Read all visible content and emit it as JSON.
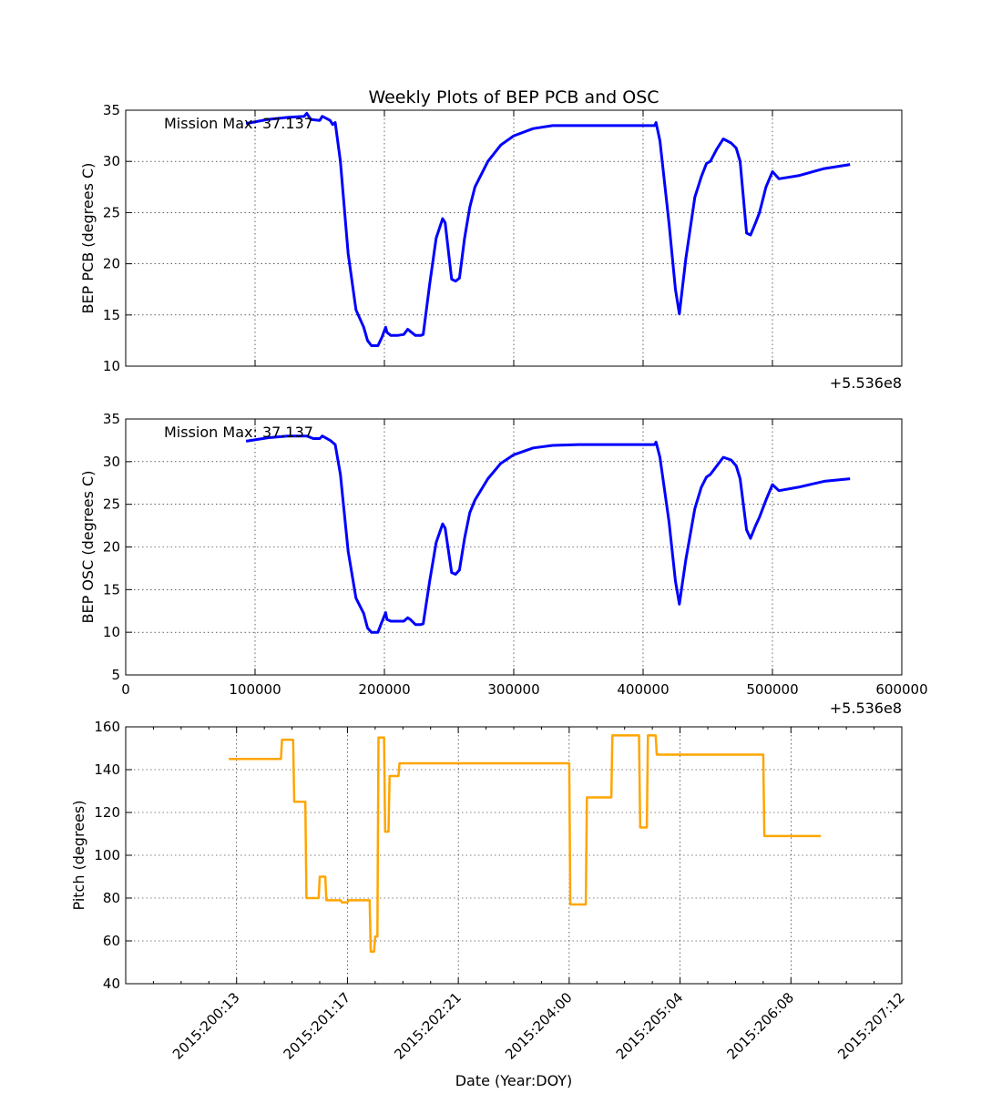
{
  "title": "Weekly Plots of BEP PCB and OSC",
  "colors": {
    "temp_line": "#0000ff",
    "pitch_line": "#ffa500",
    "grid": "#000000"
  },
  "chart_data": [
    {
      "type": "line",
      "ylabel": "BEP PCB (degrees C)",
      "xlabel": "",
      "xlim": [
        0,
        600000
      ],
      "ylim": [
        10,
        35
      ],
      "yticks": [
        10,
        15,
        20,
        25,
        30,
        35
      ],
      "xticks": [
        100000,
        200000,
        300000,
        400000,
        500000
      ],
      "show_xtick_labels": false,
      "offset_label": "+5.536e8",
      "annotation": "Mission Max: 37.137",
      "grid": true,
      "series": [
        {
          "x": [
            93000,
            110000,
            125000,
            138000,
            140000,
            143000,
            150000,
            152000,
            158000,
            160000,
            162000,
            166000,
            172000,
            178000,
            184000,
            187000,
            190000,
            195000,
            198000,
            201000,
            202000,
            205000,
            210000,
            215000,
            218000,
            220000,
            224000,
            228000,
            230000,
            235000,
            240000,
            245000,
            247000,
            252000,
            255000,
            258000,
            262000,
            266000,
            270000,
            280000,
            290000,
            300000,
            315000,
            330000,
            350000,
            380000,
            409000,
            410000,
            413000,
            420000,
            425000,
            428000,
            433000,
            440000,
            445000,
            449000,
            452000,
            457000,
            462000,
            468000,
            472000,
            475000,
            480000,
            483000,
            487000,
            490000,
            495000,
            500000,
            505000,
            520000,
            540000,
            560000
          ],
          "y": [
            33.7,
            34.1,
            34.3,
            34.4,
            34.7,
            34.1,
            34.0,
            34.4,
            34.0,
            33.6,
            33.8,
            30.0,
            21.0,
            15.5,
            13.8,
            12.5,
            12.0,
            12.0,
            12.8,
            13.8,
            13.3,
            13.0,
            13.0,
            13.1,
            13.6,
            13.4,
            13.0,
            13.0,
            13.1,
            18.0,
            22.5,
            24.4,
            24.0,
            18.5,
            18.3,
            18.6,
            22.5,
            25.5,
            27.5,
            30.0,
            31.6,
            32.5,
            33.2,
            33.5,
            33.5,
            33.5,
            33.5,
            33.8,
            32.0,
            24.0,
            17.5,
            15.1,
            20.5,
            26.5,
            28.5,
            29.8,
            30.0,
            31.2,
            32.2,
            31.8,
            31.3,
            30.0,
            23.0,
            22.8,
            24.0,
            25.0,
            27.5,
            29.0,
            28.3,
            28.6,
            29.3,
            29.7
          ]
        }
      ]
    },
    {
      "type": "line",
      "ylabel": "BEP OSC (degrees C)",
      "xlabel": "",
      "xlim": [
        0,
        600000
      ],
      "ylim": [
        5,
        35
      ],
      "yticks": [
        5,
        10,
        15,
        20,
        25,
        30,
        35
      ],
      "xticks": [
        0,
        100000,
        200000,
        300000,
        400000,
        500000,
        600000
      ],
      "xtick_labels": [
        "0",
        "100000",
        "200000",
        "300000",
        "400000",
        "500000",
        "600000"
      ],
      "offset_label": "+5.536e8",
      "annotation": "Mission Max: 37.137",
      "grid": true,
      "series": [
        {
          "x": [
            93000,
            110000,
            125000,
            140000,
            145000,
            150000,
            152000,
            158000,
            162000,
            166000,
            172000,
            178000,
            184000,
            187000,
            190000,
            195000,
            198000,
            201000,
            202000,
            205000,
            210000,
            215000,
            218000,
            220000,
            224000,
            228000,
            230000,
            235000,
            240000,
            245000,
            247000,
            252000,
            255000,
            258000,
            262000,
            266000,
            270000,
            280000,
            290000,
            300000,
            315000,
            330000,
            350000,
            380000,
            409000,
            410000,
            413000,
            420000,
            425000,
            428000,
            433000,
            440000,
            445000,
            449000,
            452000,
            457000,
            462000,
            468000,
            472000,
            475000,
            480000,
            483000,
            487000,
            490000,
            495000,
            500000,
            505000,
            520000,
            540000,
            560000
          ],
          "y": [
            32.4,
            32.8,
            33.0,
            33.0,
            32.7,
            32.7,
            33.0,
            32.5,
            32.0,
            28.5,
            19.5,
            14.0,
            12.2,
            10.5,
            10.0,
            10.0,
            11.2,
            12.3,
            11.5,
            11.3,
            11.3,
            11.3,
            11.7,
            11.5,
            10.9,
            10.9,
            11.0,
            16.0,
            20.5,
            22.7,
            22.2,
            17.0,
            16.8,
            17.3,
            21.0,
            24.0,
            25.5,
            28.0,
            29.8,
            30.8,
            31.6,
            31.9,
            32.0,
            32.0,
            32.0,
            32.3,
            30.5,
            23.0,
            16.0,
            13.3,
            18.5,
            24.5,
            27.0,
            28.2,
            28.5,
            29.5,
            30.5,
            30.2,
            29.5,
            28.0,
            22.0,
            21.0,
            22.5,
            23.5,
            25.5,
            27.3,
            26.6,
            27.0,
            27.7,
            28.0
          ]
        }
      ]
    },
    {
      "type": "line",
      "ylabel": "Pitch (degrees)",
      "xlabel": "Date (Year:DOY)",
      "xlim": [
        0,
        7
      ],
      "ylim": [
        40,
        160
      ],
      "yticks": [
        40,
        60,
        80,
        100,
        120,
        140,
        160
      ],
      "xticks": [
        1,
        2,
        3,
        4,
        5,
        6,
        7
      ],
      "xtick_labels": [
        "2015:200:13",
        "2015:201:17",
        "2015:202:21",
        "2015:204:00",
        "2015:205:04",
        "2015:206:08",
        "2015:207:12"
      ],
      "grid": true,
      "series": [
        {
          "x": [
            0.93,
            1.4,
            1.41,
            1.51,
            1.52,
            1.62,
            1.63,
            1.74,
            1.75,
            1.8,
            1.81,
            1.94,
            1.95,
            2.0,
            2.01,
            2.2,
            2.21,
            2.24,
            2.25,
            2.27,
            2.28,
            2.33,
            2.34,
            2.37,
            2.38,
            2.46,
            2.47,
            2.55,
            2.56,
            2.65,
            2.66,
            2.76,
            2.77,
            4.0,
            4.01,
            4.15,
            4.16,
            4.38,
            4.39,
            4.63,
            4.64,
            4.7,
            4.71,
            4.78,
            4.79,
            5.75,
            5.76,
            6.27
          ],
          "y": [
            145,
            145,
            154,
            154,
            125,
            125,
            80,
            80,
            90,
            90,
            79,
            79,
            78,
            78,
            79,
            79,
            55,
            55,
            62,
            62,
            155,
            155,
            111,
            111,
            137,
            137,
            143,
            143,
            143,
            143,
            143,
            143,
            143,
            143,
            77,
            77,
            127,
            127,
            156,
            156,
            113,
            113,
            156,
            156,
            147,
            147,
            109,
            109
          ]
        }
      ]
    }
  ]
}
